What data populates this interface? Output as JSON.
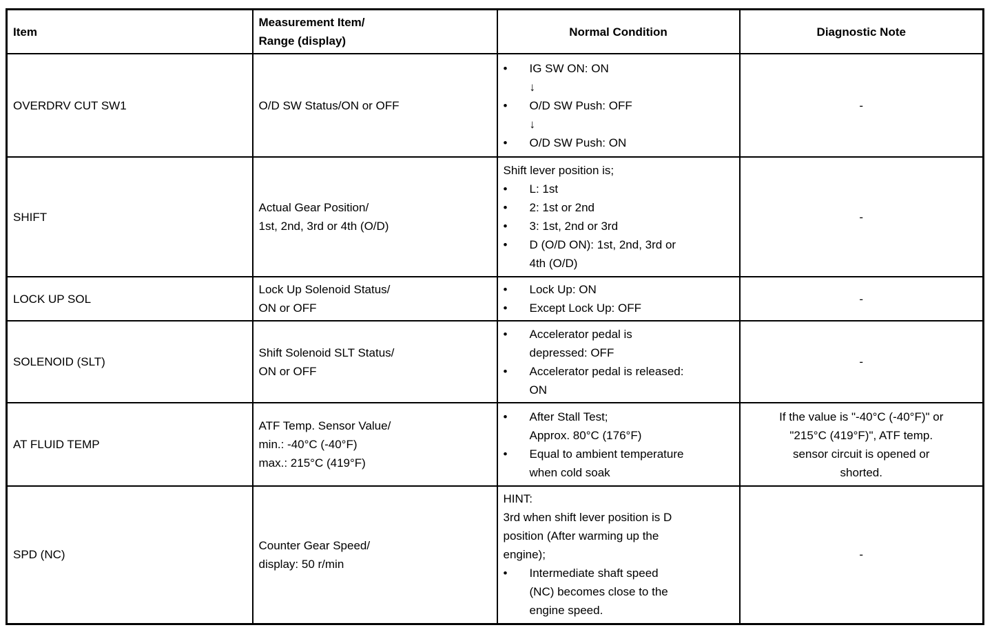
{
  "table": {
    "bullet_char": "•",
    "headers": [
      {
        "label": "Item"
      },
      {
        "label": "Measurement Item/\nRange (display)"
      },
      {
        "label": "Normal Condition"
      },
      {
        "label": "Diagnostic Note"
      }
    ],
    "rows": [
      {
        "item": "OVERDRV CUT SW1",
        "measurement": "O/D SW Status/ON or OFF",
        "normal": [
          {
            "type": "bullet",
            "text": "IG SW ON: ON"
          },
          {
            "type": "arrow",
            "text": "↓"
          },
          {
            "type": "bullet",
            "text": "O/D SW Push: OFF"
          },
          {
            "type": "arrow",
            "text": "↓"
          },
          {
            "type": "bullet",
            "text": "O/D SW Push: ON"
          }
        ],
        "note": "-"
      },
      {
        "item": "SHIFT",
        "measurement": "Actual Gear Position/\n1st, 2nd, 3rd or 4th (O/D)",
        "normal": [
          {
            "type": "text",
            "text": "Shift lever position is;"
          },
          {
            "type": "bullet",
            "text": "L: 1st"
          },
          {
            "type": "bullet",
            "text": "2: 1st or 2nd"
          },
          {
            "type": "bullet",
            "text": "3: 1st, 2nd or 3rd"
          },
          {
            "type": "bullet",
            "text": "D (O/D ON): 1st, 2nd, 3rd or\n4th (O/D)"
          }
        ],
        "note": "-"
      },
      {
        "item": "LOCK UP SOL",
        "measurement": "Lock Up Solenoid Status/\nON or OFF",
        "normal": [
          {
            "type": "bullet",
            "text": "Lock Up: ON"
          },
          {
            "type": "bullet",
            "text": "Except Lock Up: OFF"
          }
        ],
        "note": "-"
      },
      {
        "item": "SOLENOID (SLT)",
        "measurement": "Shift Solenoid SLT Status/\nON or OFF",
        "normal": [
          {
            "type": "bullet",
            "text": "Accelerator pedal is\ndepressed: OFF"
          },
          {
            "type": "bullet",
            "text": "Accelerator pedal is released:\nON"
          }
        ],
        "note": "-"
      },
      {
        "item": "AT FLUID TEMP",
        "measurement": "ATF Temp. Sensor Value/\nmin.: -40°C (-40°F)\nmax.: 215°C (419°F)",
        "normal": [
          {
            "type": "bullet",
            "text": "After Stall Test;\nApprox. 80°C (176°F)"
          },
          {
            "type": "bullet",
            "text": "Equal to ambient temperature\nwhen cold soak"
          }
        ],
        "note": "If the value is \"-40°C (-40°F)\" or\n\"215°C (419°F)\", ATF temp.\nsensor circuit is opened or\nshorted."
      },
      {
        "item": "SPD (NC)",
        "measurement": "Counter Gear Speed/\ndisplay: 50 r/min",
        "normal": [
          {
            "type": "text",
            "text": "HINT:"
          },
          {
            "type": "text",
            "text": "3rd when shift lever position is D\nposition (After warming up the\nengine);"
          },
          {
            "type": "bullet",
            "text": "Intermediate shaft speed\n(NC) becomes close to the\nengine speed."
          }
        ],
        "note": "-"
      }
    ]
  }
}
